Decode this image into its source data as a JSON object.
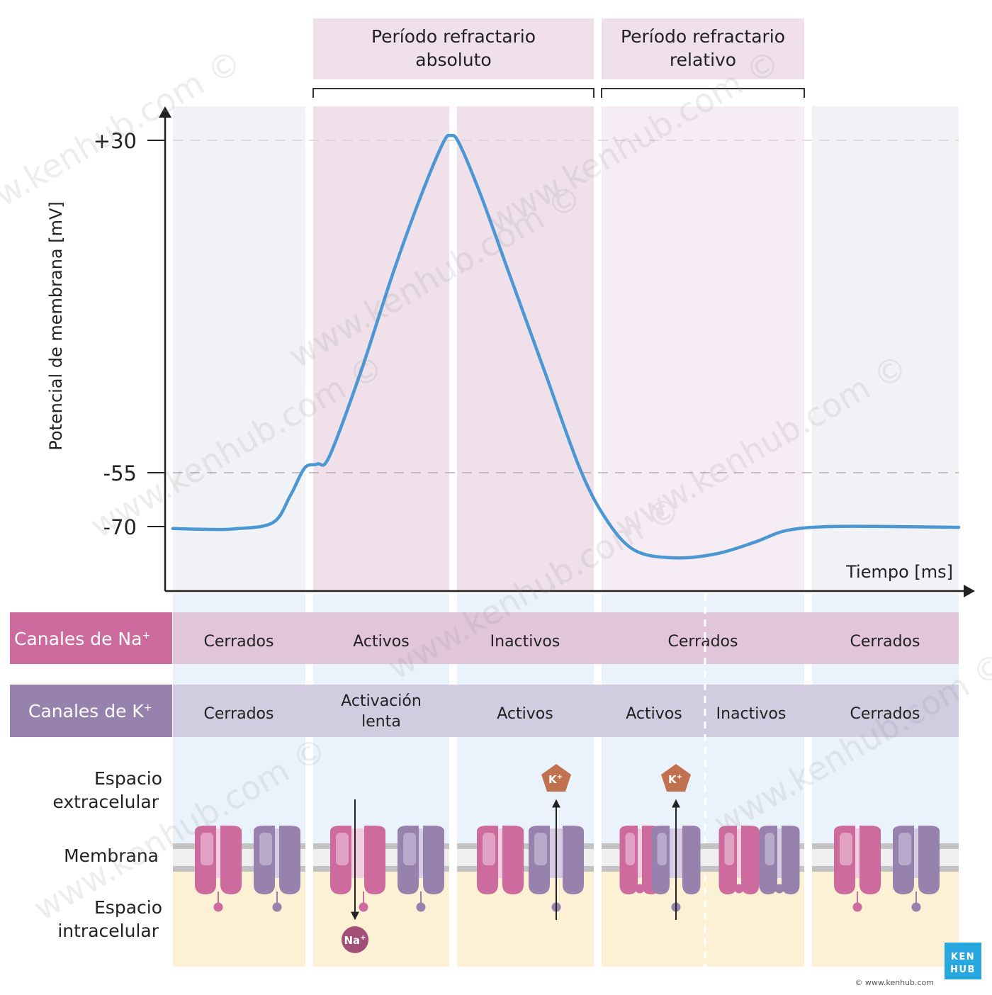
{
  "header": {
    "absolute_line1": "Período refractario",
    "absolute_line2": "absoluto",
    "relative_line1": "Período refractario",
    "relative_line2": "relativo"
  },
  "chart_data": {
    "type": "line",
    "ylabel": "Potencial de membrana [mV]",
    "xlabel": "Tiempo [ms]",
    "y_ticks": [
      "+30",
      "-55",
      "-70"
    ],
    "reference_lines_mV": [
      30,
      -55
    ],
    "series": [
      {
        "values_mV": [
          -70.5,
          -70.7,
          -70.6,
          -69.0,
          -62.0,
          -55.0,
          -54.0,
          -52.0,
          -30.0,
          -5.0,
          15.0,
          28.0,
          30.0,
          28.0,
          15.0,
          -5.0,
          -30.0,
          -55.0,
          -68.0,
          -76.0,
          -78.0,
          -77.0,
          -74.0,
          -71.0,
          -70.0,
          -70.0,
          -70.2
        ]
      }
    ]
  },
  "na_row": {
    "title": "Canales de Na",
    "sup": "+",
    "states": [
      "Cerrados",
      "Activos",
      "Inactivos",
      "Cerrados",
      "Cerrados"
    ]
  },
  "k_row": {
    "title": "Canales de K",
    "sup": "+",
    "states": [
      "Cerrados",
      "Activación",
      "lenta",
      "Activos",
      "Activos",
      "Inactivos",
      "Cerrados"
    ]
  },
  "membrane_labels": {
    "extra_line1": "Espacio",
    "extra_line2": "extracelular",
    "membrane": "Membrana",
    "intra_line1": "Espacio",
    "intra_line2": "intracelular"
  },
  "ions": {
    "na": "Na",
    "k": "K",
    "sup": "+"
  },
  "brand": {
    "logo_line1": "KEN",
    "logo_line2": "HUB",
    "copyright": "© www.kenhub.com",
    "watermark": "www.kenhub.com ©"
  },
  "colors": {
    "curve": "#4a97d4",
    "na_channel": "#cd6b9e",
    "k_channel": "#9781ad",
    "refractory_absolute": "#efe0ea",
    "refractory_relative": "#f6ecf4",
    "resting_band": "#f1f2f5",
    "extracellular": "#eaf3fb",
    "intracellular": "#fdf1d5",
    "k_ion": "#c0714f",
    "na_ion": "#a24f78",
    "logo": "#29a8e0"
  }
}
